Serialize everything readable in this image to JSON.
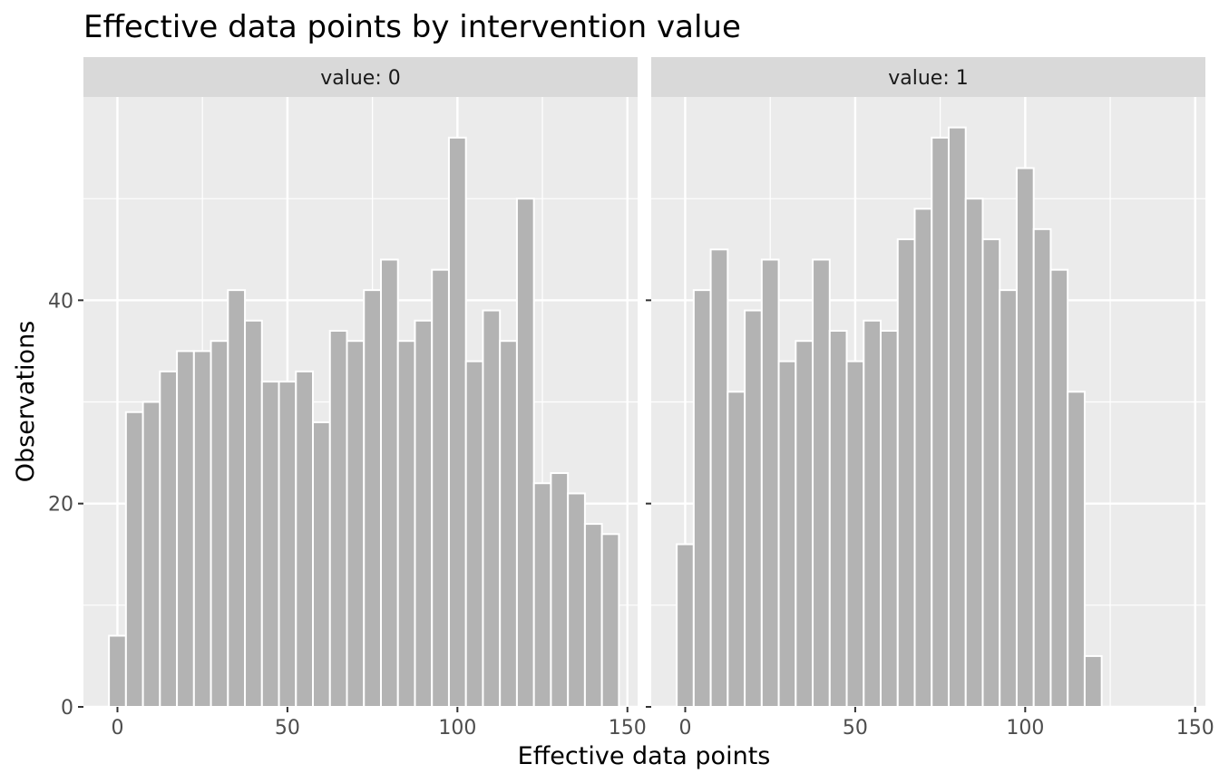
{
  "chart_data": {
    "type": "bar",
    "subtype": "faceted-histogram",
    "title": "Effective data points by intervention value",
    "xlabel": "Effective data points",
    "ylabel": "Observations",
    "xlim": [
      -10,
      153
    ],
    "ylim": [
      0,
      60
    ],
    "x_ticks": [
      0,
      50,
      100,
      150
    ],
    "y_ticks": [
      0,
      20,
      40
    ],
    "bin_width": 5,
    "grid": true,
    "bar_color": "#b3b3b3",
    "bar_outline": "#ffffff",
    "panel_background": "#ebebeb",
    "strip_background": "#d9d9d9",
    "facets": [
      {
        "label": "value: 0",
        "bin_centers": [
          0,
          5,
          10,
          15,
          20,
          25,
          30,
          35,
          40,
          45,
          50,
          55,
          60,
          65,
          70,
          75,
          80,
          85,
          90,
          95,
          100,
          105,
          110,
          115,
          120,
          125,
          130,
          135,
          140,
          145
        ],
        "counts": [
          7,
          29,
          30,
          33,
          35,
          35,
          36,
          41,
          38,
          32,
          32,
          33,
          28,
          37,
          36,
          41,
          44,
          36,
          38,
          43,
          56,
          34,
          39,
          36,
          50,
          22,
          23,
          21,
          18,
          17
        ]
      },
      {
        "label": "value: 1",
        "bin_centers": [
          0,
          5,
          10,
          15,
          20,
          25,
          30,
          35,
          40,
          45,
          50,
          55,
          60,
          65,
          70,
          75,
          80,
          85,
          90,
          95,
          100,
          105,
          110,
          115,
          120
        ],
        "counts": [
          16,
          41,
          45,
          31,
          39,
          44,
          34,
          36,
          44,
          37,
          34,
          38,
          37,
          46,
          49,
          56,
          57,
          50,
          46,
          41,
          53,
          47,
          43,
          31,
          5
        ]
      }
    ]
  }
}
